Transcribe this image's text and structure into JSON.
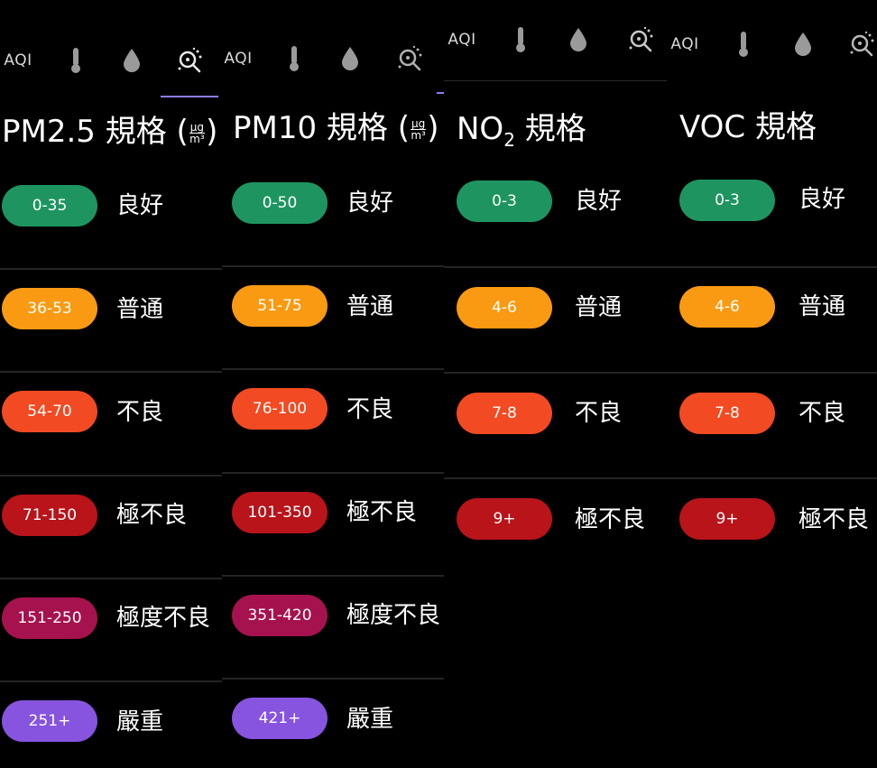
{
  "colors": {
    "good": "#1e9560",
    "moderate": "#fa9a12",
    "poor": "#f24a22",
    "very_poor": "#b8141a",
    "extreme": "#a6124d",
    "severe": "#8754df",
    "tab_active": "#8e7cf2"
  },
  "panels": [
    {
      "tabs": {
        "aqi_label": "AQI",
        "icons": [
          "thermometer-icon",
          "droplet-icon",
          "particles-icon"
        ],
        "active": "particles"
      },
      "title": {
        "text": "PM2.5 規格 (",
        "unit_num": "μg",
        "unit_den": "m³",
        "tail": ")"
      },
      "levels": [
        {
          "range": "0-35",
          "label": "良好",
          "color": "#1e9560"
        },
        {
          "range": "36-53",
          "label": "普通",
          "color": "#fa9a12"
        },
        {
          "range": "54-70",
          "label": "不良",
          "color": "#f24a22"
        },
        {
          "range": "71-150",
          "label": "極不良",
          "color": "#b8141a"
        },
        {
          "range": "151-250",
          "label": "極度不良",
          "color": "#a6124d"
        },
        {
          "range": "251+",
          "label": "嚴重",
          "color": "#8754df"
        }
      ]
    },
    {
      "tabs": {
        "aqi_label": "AQI",
        "icons": [
          "thermometer-icon",
          "droplet-icon",
          "particles-icon"
        ],
        "active": "particles"
      },
      "title": {
        "text": "PM10 規格 (",
        "unit_num": "μg",
        "unit_den": "m³",
        "tail": ")"
      },
      "levels": [
        {
          "range": "0-50",
          "label": "良好",
          "color": "#1e9560"
        },
        {
          "range": "51-75",
          "label": "普通",
          "color": "#fa9a12"
        },
        {
          "range": "76-100",
          "label": "不良",
          "color": "#f24a22"
        },
        {
          "range": "101-350",
          "label": "極不良",
          "color": "#b8141a"
        },
        {
          "range": "351-420",
          "label": "極度不良",
          "color": "#a6124d"
        },
        {
          "range": "421+",
          "label": "嚴重",
          "color": "#8754df"
        }
      ]
    },
    {
      "tabs": {
        "aqi_label": "AQI",
        "icons": [
          "thermometer-icon",
          "droplet-icon",
          "particles-icon"
        ],
        "active": "particles"
      },
      "title": {
        "text": "NO",
        "sub": "2",
        "tail": " 規格"
      },
      "levels": [
        {
          "range": "0-3",
          "label": "良好",
          "color": "#1e9560"
        },
        {
          "range": "4-6",
          "label": "普通",
          "color": "#fa9a12"
        },
        {
          "range": "7-8",
          "label": "不良",
          "color": "#f24a22"
        },
        {
          "range": "9+",
          "label": "極不良",
          "color": "#b8141a"
        }
      ]
    },
    {
      "tabs": {
        "aqi_label": "AQI",
        "icons": [
          "thermometer-icon",
          "droplet-icon",
          "particles-icon"
        ],
        "active": "particles"
      },
      "title": {
        "text": "VOC 規格"
      },
      "levels": [
        {
          "range": "0-3",
          "label": "良好",
          "color": "#1e9560"
        },
        {
          "range": "4-6",
          "label": "普通",
          "color": "#fa9a12"
        },
        {
          "range": "7-8",
          "label": "不良",
          "color": "#f24a22"
        },
        {
          "range": "9+",
          "label": "極不良",
          "color": "#b8141a"
        }
      ]
    }
  ]
}
